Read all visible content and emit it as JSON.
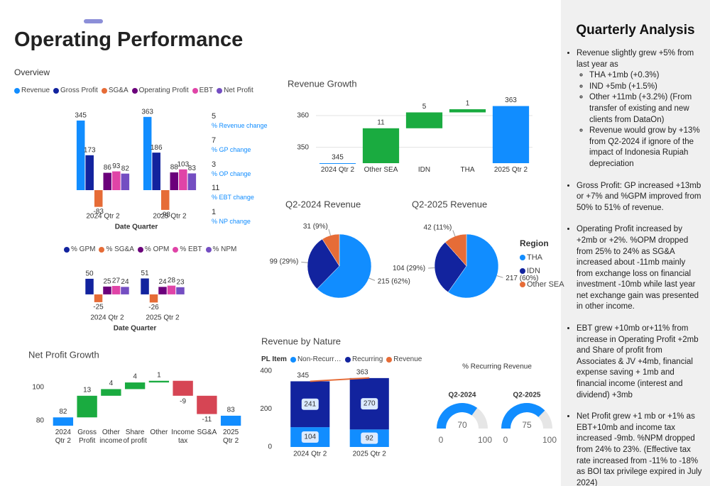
{
  "page_title": "Operating Performance",
  "section_label": "Overview",
  "changes": [
    {
      "value": 5,
      "label": "% Revenue change"
    },
    {
      "value": 7,
      "label": "% GP change"
    },
    {
      "value": 3,
      "label": "% OP change"
    },
    {
      "value": 11,
      "label": "% EBT change"
    },
    {
      "value": 1,
      "label": "% NP change"
    }
  ],
  "chart_data": [
    {
      "type": "grouped-bar",
      "categories": [
        "2024 Qtr 2",
        "2025 Qtr 2"
      ],
      "x_label": "Date Quarter",
      "data_labels": true,
      "ylim": [
        -102,
        415
      ],
      "series": [
        {
          "name": "Revenue",
          "color": "#118dff",
          "values": [
            345,
            363
          ]
        },
        {
          "name": "Gross Profit",
          "color": "#12239e",
          "values": [
            173,
            186
          ]
        },
        {
          "name": "SG&A",
          "color": "#e66c37",
          "values": [
            -83,
            -98
          ]
        },
        {
          "name": "Operating Profit",
          "color": "#6b007b",
          "values": [
            86,
            88
          ]
        },
        {
          "name": "EBT",
          "color": "#e044a7",
          "values": [
            93,
            103
          ]
        },
        {
          "name": "Net Profit",
          "color": "#744ec2",
          "values": [
            82,
            83
          ]
        }
      ]
    },
    {
      "type": "grouped-bar",
      "categories": [
        "2024 Qtr 2",
        "2025 Qtr 2"
      ],
      "x_label": "Date Quarter",
      "data_labels": true,
      "ylim": [
        -57,
        68
      ],
      "series": [
        {
          "name": "% GPM",
          "color": "#12239e",
          "values": [
            50,
            51
          ]
        },
        {
          "name": "% SG&A",
          "color": "#e66c37",
          "values": [
            -25,
            -26
          ]
        },
        {
          "name": "% OPM",
          "color": "#6b007b",
          "values": [
            25,
            24
          ]
        },
        {
          "name": "% EBT",
          "color": "#e044a7",
          "values": [
            27,
            28
          ]
        },
        {
          "name": "% NPM",
          "color": "#744ec2",
          "values": [
            24,
            23
          ]
        }
      ]
    },
    {
      "type": "waterfall",
      "title": "Revenue Growth",
      "categories": [
        "2024 Qtr 2",
        "Other SEA",
        "IDN",
        "THA",
        "2025 Qtr 2"
      ],
      "values": [
        345,
        11,
        5,
        1,
        363
      ],
      "totals": [
        true,
        false,
        false,
        false,
        true
      ],
      "total_color": "#118dff",
      "increase_color": "#1aab40",
      "decrease_color": "#d64554",
      "ylim": [
        345,
        364
      ],
      "yticks": [
        350,
        360
      ],
      "grid": true
    },
    {
      "type": "pie",
      "title": "Q2-2024 Revenue",
      "categories": [
        "THA",
        "IDN",
        "Other SEA"
      ],
      "values": [
        215,
        99,
        31
      ],
      "value_labels": [
        "215 (62%)",
        "99 (29%)",
        "31 (9%)"
      ],
      "colors": [
        "#118dff",
        "#12239e",
        "#e66c37"
      ],
      "legend": false
    },
    {
      "type": "pie",
      "title": "Q2-2025 Revenue",
      "categories": [
        "THA",
        "IDN",
        "Other SEA"
      ],
      "values": [
        217,
        104,
        42
      ],
      "value_labels": [
        "217 (60%)",
        "104 (29%)",
        "42 (11%)"
      ],
      "colors": [
        "#118dff",
        "#12239e",
        "#e66c37"
      ],
      "legend": true,
      "legend_title": "Region"
    },
    {
      "type": "waterfall",
      "title": "Net Profit Growth",
      "categories": [
        "2024 Qtr 2",
        "Gross Profit",
        "Other income",
        "Share of profit",
        "Other",
        "Income tax",
        "SG&A",
        "2025 Qtr 2"
      ],
      "values": [
        82,
        13,
        4,
        4,
        1,
        -9,
        -11,
        83
      ],
      "totals": [
        true,
        false,
        false,
        false,
        false,
        false,
        false,
        true
      ],
      "total_color": "#118dff",
      "increase_color": "#1aab40",
      "decrease_color": "#d64554",
      "ylim": [
        77,
        109
      ],
      "yticks": [
        80,
        100
      ],
      "grid": false
    },
    {
      "type": "stacked-bar-line",
      "title": "Revenue by Nature",
      "legend_title": "PL Item",
      "categories": [
        "2024 Qtr 2",
        "2025 Qtr 2"
      ],
      "series": [
        {
          "name": "Non-Recurring",
          "color": "#118dff",
          "values": [
            104,
            92
          ]
        },
        {
          "name": "Recurring",
          "color": "#12239e",
          "values": [
            241,
            270
          ]
        },
        {
          "name": "Revenue",
          "color": "#e66c37",
          "values": [
            345,
            363
          ],
          "kind": "line"
        }
      ],
      "ylim": [
        0,
        410
      ],
      "yticks": [
        0,
        200,
        400
      ]
    },
    {
      "type": "gauge",
      "title": "% Recurring Revenue",
      "color": "#118dff",
      "gauges": [
        {
          "name": "Q2-2024",
          "value": 70,
          "min": 0,
          "max": 100
        },
        {
          "name": "Q2-2025",
          "value": 75,
          "min": 0,
          "max": 100
        }
      ]
    }
  ],
  "analysis": {
    "title": "Quarterly Analysis",
    "items": [
      {
        "text": "Revenue slightly grew +5% from last year as",
        "subitems": [
          "THA +1mb (+0.3%)",
          "IND +5mb (+1.5%)",
          "Other +11mb (+3.2%) (From transfer of existing and new clients from DataOn)",
          "Revenue would grow by +13% from Q2-2024 if ignore of the impact of Indonesia Rupiah depreciation"
        ]
      },
      {
        "text": "Gross Profit: GP increased +13mb or +7% and %GPM improved from 50% to 51% of revenue."
      },
      {
        "text": "Operating Profit increased by +2mb or +2%. %OPM dropped from 25% to 24% as SG&A increased about -11mb mainly from exchange loss on financial investment -10mb while last year net exchange gain was presented in other income."
      },
      {
        "text": "EBT grew +10mb or+11% from increase in Operating Profit +2mb and Share of profit from Associates & JV +4mb, financial expense saving + 1mb and financial income (interest and dividend) +3mb"
      },
      {
        "text": "Net Profit grew +1 mb or +1% as EBT+10mb and income tax increased -9mb. %NPM dropped from 24% to 23%. (Effective tax rate increased from -11% to -18% as BOI tax privilege expired in July 2024)"
      }
    ]
  }
}
